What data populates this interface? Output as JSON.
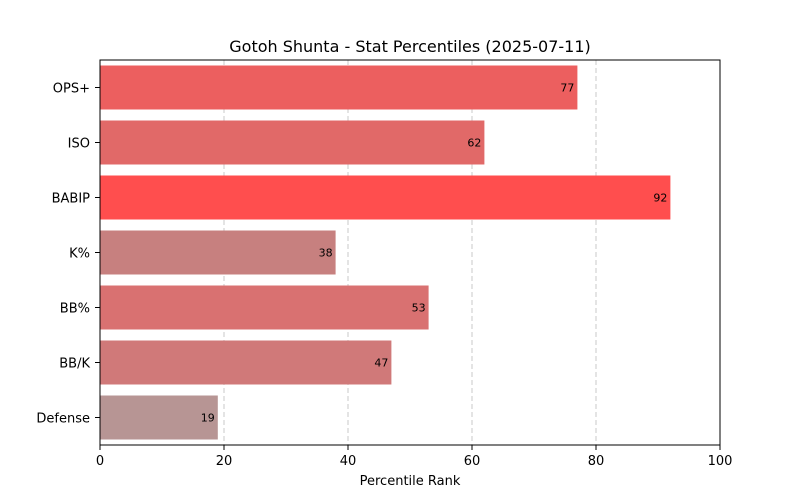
{
  "chart_data": {
    "type": "bar",
    "orientation": "horizontal",
    "title": "Gotoh Shunta - Stat Percentiles (2025-07-11)",
    "xlabel": "Percentile Rank",
    "ylabel": "",
    "xlim": [
      0,
      100
    ],
    "xticks": [
      0,
      20,
      40,
      60,
      80,
      100
    ],
    "grid": "vertical dashed",
    "categories": [
      "OPS+",
      "ISO",
      "BABIP",
      "K%",
      "BB%",
      "BB/K",
      "Defense"
    ],
    "values": [
      77,
      62,
      92,
      38,
      53,
      47,
      19
    ],
    "colors": [
      "#ec5f5f",
      "#e16968",
      "#ff4e4e",
      "#c7807f",
      "#d97171",
      "#d07979",
      "#b79594"
    ],
    "value_labels": [
      "77",
      "62",
      "92",
      "38",
      "53",
      "47",
      "19"
    ]
  }
}
